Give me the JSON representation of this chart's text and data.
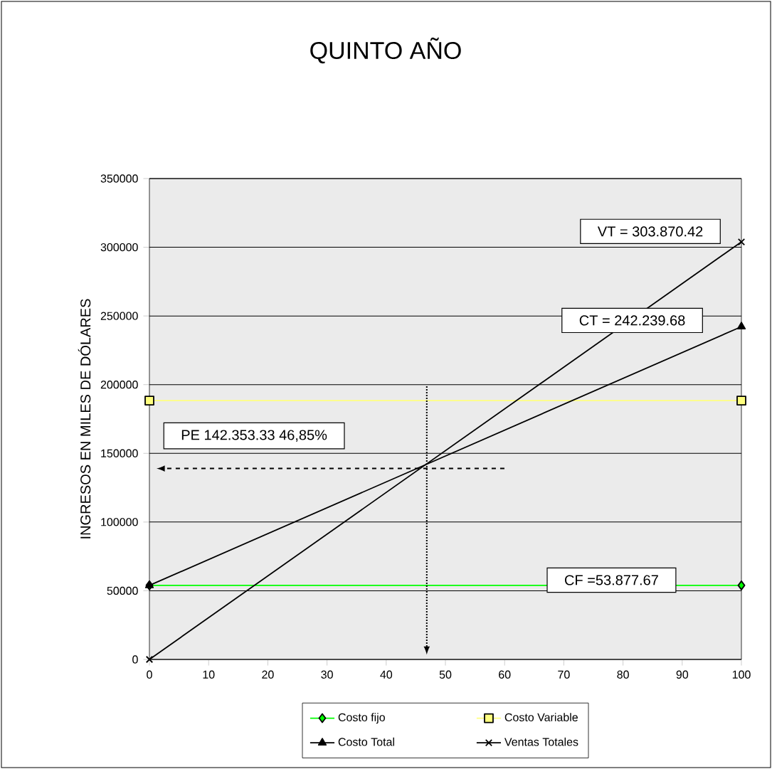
{
  "chart_data": {
    "type": "line",
    "title": "QUINTO AÑO",
    "ylabel": "INGRESOS EN MILES DE DÓLARES",
    "x": [
      0,
      100
    ],
    "series": [
      {
        "name": "Costo fijo",
        "color": "#00ff00",
        "marker": "diamond",
        "values": [
          53900,
          53900
        ]
      },
      {
        "name": "Costo Variable",
        "color": "#ffff80",
        "marker": "square",
        "values": [
          188400,
          188400
        ]
      },
      {
        "name": "Costo Total",
        "color": "#000000",
        "marker": "triangle",
        "values": [
          53900,
          242200
        ]
      },
      {
        "name": "Ventas Totales",
        "color": "#000000",
        "marker": "cross",
        "values": [
          0,
          303900
        ]
      }
    ],
    "xlim": [
      0,
      100
    ],
    "xticks": [
      0,
      10,
      20,
      30,
      40,
      50,
      60,
      70,
      80,
      90,
      100
    ],
    "ylim": [
      0,
      350000
    ],
    "yticks": [
      0,
      50000,
      100000,
      150000,
      200000,
      250000,
      300000,
      350000
    ],
    "grid": "y",
    "legend": "bottom",
    "ref_lines": [
      {
        "axis": "y",
        "value": 139000,
        "line_style": "dashed"
      },
      {
        "axis": "x",
        "value": 46.85,
        "line_style": "dotted"
      }
    ],
    "annotations": [
      "VT = 303.870.42",
      "CT = 242.239.68",
      "CF =53.877.67",
      "PE 142.353.33     46,85%"
    ]
  }
}
